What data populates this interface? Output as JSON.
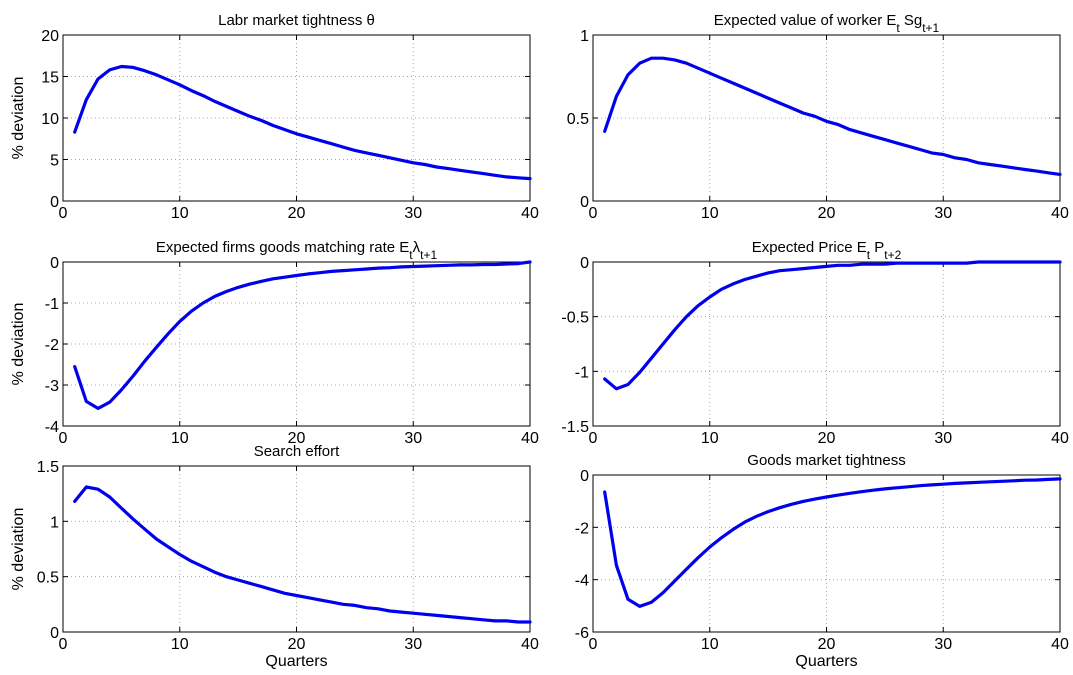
{
  "figure": {
    "line_color": "#0000ee",
    "grid": true
  },
  "chart_data": [
    {
      "type": "line",
      "title": [
        "Labr market tightness  θ"
      ],
      "title_sub": "",
      "ylabel": "% deviation",
      "xlabel": "",
      "xlim": [
        0,
        40
      ],
      "ylim": [
        0,
        20
      ],
      "xticks": [
        0,
        10,
        20,
        30,
        40
      ],
      "yticks": [
        0,
        5,
        10,
        15,
        20
      ],
      "x": [
        1,
        2,
        3,
        4,
        5,
        6,
        7,
        8,
        9,
        10,
        11,
        12,
        13,
        14,
        15,
        16,
        17,
        18,
        19,
        20,
        21,
        22,
        23,
        24,
        25,
        26,
        27,
        28,
        29,
        30,
        31,
        32,
        33,
        34,
        35,
        36,
        37,
        38,
        39,
        40
      ],
      "values": [
        8.3,
        12.2,
        14.7,
        15.8,
        16.2,
        16.1,
        15.7,
        15.2,
        14.6,
        14.0,
        13.3,
        12.7,
        12.0,
        11.4,
        10.8,
        10.2,
        9.7,
        9.1,
        8.6,
        8.1,
        7.7,
        7.3,
        6.9,
        6.5,
        6.1,
        5.8,
        5.5,
        5.2,
        4.9,
        4.6,
        4.4,
        4.1,
        3.9,
        3.7,
        3.5,
        3.3,
        3.1,
        2.9,
        2.8,
        2.7
      ]
    },
    {
      "type": "line",
      "title": [
        "Expected value of worker E",
        "t",
        " Sg",
        "t+1"
      ],
      "ylabel": "",
      "xlabel": "",
      "xlim": [
        0,
        40
      ],
      "ylim": [
        0,
        1
      ],
      "xticks": [
        0,
        10,
        20,
        30,
        40
      ],
      "yticks": [
        0,
        0.5,
        1
      ],
      "ytick_labels": [
        "0",
        "0.5",
        "1"
      ],
      "x": [
        1,
        2,
        3,
        4,
        5,
        6,
        7,
        8,
        9,
        10,
        11,
        12,
        13,
        14,
        15,
        16,
        17,
        18,
        19,
        20,
        21,
        22,
        23,
        24,
        25,
        26,
        27,
        28,
        29,
        30,
        31,
        32,
        33,
        34,
        35,
        36,
        37,
        38,
        39,
        40
      ],
      "values": [
        0.42,
        0.63,
        0.76,
        0.83,
        0.86,
        0.86,
        0.85,
        0.83,
        0.8,
        0.77,
        0.74,
        0.71,
        0.68,
        0.65,
        0.62,
        0.59,
        0.56,
        0.53,
        0.51,
        0.48,
        0.46,
        0.43,
        0.41,
        0.39,
        0.37,
        0.35,
        0.33,
        0.31,
        0.29,
        0.28,
        0.26,
        0.25,
        0.23,
        0.22,
        0.21,
        0.2,
        0.19,
        0.18,
        0.17,
        0.16
      ]
    },
    {
      "type": "line",
      "title": [
        "Expected firms goods matching rate E",
        "t",
        "λ",
        "t+1"
      ],
      "ylabel": "% deviation",
      "xlabel": "",
      "xlim": [
        0,
        40
      ],
      "ylim": [
        -4,
        0
      ],
      "xticks": [
        0,
        10,
        20,
        30,
        40
      ],
      "yticks": [
        -4,
        -3,
        -2,
        -1,
        0
      ],
      "x": [
        1,
        2,
        3,
        4,
        5,
        6,
        7,
        8,
        9,
        10,
        11,
        12,
        13,
        14,
        15,
        16,
        17,
        18,
        19,
        20,
        21,
        22,
        23,
        24,
        25,
        26,
        27,
        28,
        29,
        30,
        31,
        32,
        33,
        34,
        35,
        36,
        37,
        38,
        39,
        40
      ],
      "values": [
        -2.55,
        -3.4,
        -3.57,
        -3.42,
        -3.12,
        -2.78,
        -2.42,
        -2.08,
        -1.75,
        -1.45,
        -1.2,
        -1.0,
        -0.84,
        -0.72,
        -0.62,
        -0.54,
        -0.47,
        -0.41,
        -0.37,
        -0.33,
        -0.29,
        -0.26,
        -0.23,
        -0.21,
        -0.19,
        -0.17,
        -0.15,
        -0.14,
        -0.12,
        -0.11,
        -0.1,
        -0.09,
        -0.08,
        -0.07,
        -0.07,
        -0.06,
        -0.06,
        -0.05,
        -0.04,
        0.0
      ]
    },
    {
      "type": "line",
      "title": [
        "Expected Price E",
        "t",
        " P",
        "t+2"
      ],
      "ylabel": "",
      "xlabel": "",
      "xlim": [
        0,
        40
      ],
      "ylim": [
        -1.5,
        0
      ],
      "xticks": [
        0,
        10,
        20,
        30,
        40
      ],
      "yticks": [
        -1.5,
        -1,
        -0.5,
        0
      ],
      "ytick_labels": [
        "-1.5",
        "-1",
        "-0.5",
        "0"
      ],
      "x": [
        1,
        2,
        3,
        4,
        5,
        6,
        7,
        8,
        9,
        10,
        11,
        12,
        13,
        14,
        15,
        16,
        17,
        18,
        19,
        20,
        21,
        22,
        23,
        24,
        25,
        26,
        27,
        28,
        29,
        30,
        31,
        32,
        33,
        34,
        35,
        36,
        37,
        38,
        39,
        40
      ],
      "values": [
        -1.07,
        -1.16,
        -1.12,
        -1.01,
        -0.88,
        -0.75,
        -0.62,
        -0.5,
        -0.4,
        -0.32,
        -0.25,
        -0.2,
        -0.16,
        -0.13,
        -0.1,
        -0.08,
        -0.07,
        -0.06,
        -0.05,
        -0.04,
        -0.03,
        -0.03,
        -0.02,
        -0.02,
        -0.02,
        -0.01,
        -0.01,
        -0.01,
        -0.01,
        -0.01,
        -0.01,
        -0.01,
        0,
        0,
        0,
        0,
        0,
        0,
        0,
        0
      ]
    },
    {
      "type": "line",
      "title": [
        "Search effort"
      ],
      "ylabel": "% deviation",
      "xlabel": "Quarters",
      "xlim": [
        0,
        40
      ],
      "ylim": [
        0,
        1.5
      ],
      "xticks": [
        0,
        10,
        20,
        30,
        40
      ],
      "yticks": [
        0,
        0.5,
        1,
        1.5
      ],
      "ytick_labels": [
        "0",
        "0.5",
        "1",
        "1.5"
      ],
      "x": [
        1,
        2,
        3,
        4,
        5,
        6,
        7,
        8,
        9,
        10,
        11,
        12,
        13,
        14,
        15,
        16,
        17,
        18,
        19,
        20,
        21,
        22,
        23,
        24,
        25,
        26,
        27,
        28,
        29,
        30,
        31,
        32,
        33,
        34,
        35,
        36,
        37,
        38,
        39,
        40
      ],
      "values": [
        1.18,
        1.31,
        1.29,
        1.22,
        1.12,
        1.02,
        0.93,
        0.84,
        0.77,
        0.7,
        0.64,
        0.59,
        0.54,
        0.5,
        0.47,
        0.44,
        0.41,
        0.38,
        0.35,
        0.33,
        0.31,
        0.29,
        0.27,
        0.25,
        0.24,
        0.22,
        0.21,
        0.19,
        0.18,
        0.17,
        0.16,
        0.15,
        0.14,
        0.13,
        0.12,
        0.11,
        0.1,
        0.1,
        0.09,
        0.09
      ]
    },
    {
      "type": "line",
      "title": [
        "Goods market tightness"
      ],
      "ylabel": "",
      "xlabel": "Quarters",
      "xlim": [
        0,
        40
      ],
      "ylim": [
        -6,
        0
      ],
      "xticks": [
        0,
        10,
        20,
        30,
        40
      ],
      "yticks": [
        -6,
        -4,
        -2,
        0
      ],
      "x": [
        1,
        2,
        3,
        4,
        5,
        6,
        7,
        8,
        9,
        10,
        11,
        12,
        13,
        14,
        15,
        16,
        17,
        18,
        19,
        20,
        21,
        22,
        23,
        24,
        25,
        26,
        27,
        28,
        29,
        30,
        31,
        32,
        33,
        34,
        35,
        36,
        37,
        38,
        39,
        40
      ],
      "values": [
        -0.65,
        -3.45,
        -4.75,
        -5.02,
        -4.86,
        -4.5,
        -4.05,
        -3.6,
        -3.16,
        -2.75,
        -2.4,
        -2.08,
        -1.8,
        -1.58,
        -1.4,
        -1.25,
        -1.12,
        -1.01,
        -0.92,
        -0.84,
        -0.77,
        -0.7,
        -0.64,
        -0.58,
        -0.53,
        -0.49,
        -0.45,
        -0.41,
        -0.38,
        -0.35,
        -0.32,
        -0.3,
        -0.28,
        -0.26,
        -0.24,
        -0.22,
        -0.2,
        -0.19,
        -0.17,
        -0.15
      ]
    }
  ]
}
